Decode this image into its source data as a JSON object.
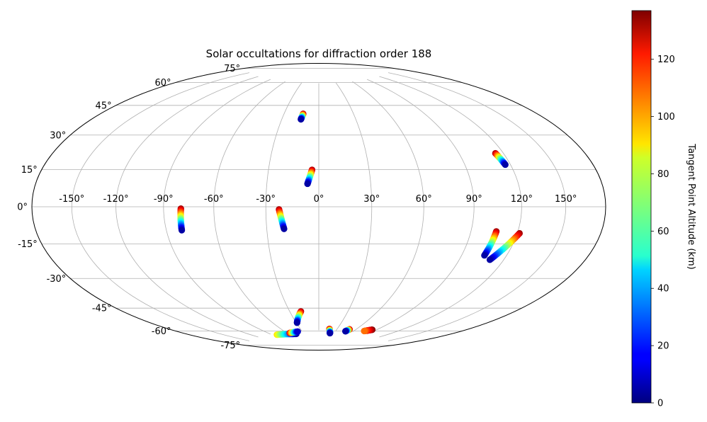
{
  "chart_data": {
    "type": "scatter",
    "projection": "hammer-aitoff",
    "title": "Solar occultations for diffraction order 188",
    "xlabel": "",
    "ylabel": "",
    "grid": true,
    "lon_ticks": [
      -150,
      -120,
      -90,
      -60,
      -30,
      0,
      30,
      60,
      90,
      120,
      150
    ],
    "lon_tick_labels": [
      "-150°",
      "-120°",
      "-90°",
      "-60°",
      "-30°",
      "0°",
      "30°",
      "60°",
      "90°",
      "120°",
      "150°"
    ],
    "lat_ticks": [
      75,
      60,
      45,
      30,
      15,
      0,
      -15,
      -30,
      -45,
      -60,
      -75
    ],
    "lat_tick_labels": [
      "75°",
      "60°",
      "45°",
      "30°",
      "15°",
      "0°",
      "-15°",
      "-30°",
      "-45°",
      "-60°",
      "-75°"
    ],
    "colorbar": {
      "label": "Tangent Point Altitude (km)",
      "min": 0,
      "max": 137,
      "ticks": [
        0,
        20,
        40,
        60,
        80,
        100,
        120
      ],
      "tick_labels": [
        "0",
        "20",
        "40",
        "60",
        "80",
        "100",
        "120"
      ],
      "colormap": "jet"
    },
    "tracks": [
      {
        "lon_start": -14.5,
        "lat_start": 51.0,
        "alt_start": 5,
        "lon_end": -13.5,
        "lat_end": 54.5,
        "alt_end": 132
      },
      {
        "lon_start": -6.5,
        "lat_start": 13.0,
        "alt_start": 5,
        "lon_end": -4.0,
        "lat_end": 21.0,
        "alt_end": 132
      },
      {
        "lon_start": 116.5,
        "lat_start": 21.0,
        "alt_start": 5,
        "lon_end": 114.5,
        "lat_end": 27.0,
        "alt_end": 132
      },
      {
        "lon_start": -80.5,
        "lat_start": -12.5,
        "alt_start": 5,
        "lon_end": -79.5,
        "lat_end": -1.0,
        "alt_end": 132
      },
      {
        "lon_start": -20.0,
        "lat_start": -12.5,
        "alt_start": 5,
        "lon_end": -22.5,
        "lat_end": -1.5,
        "alt_end": 132
      },
      {
        "lon_start": 105.0,
        "lat_start": -25.0,
        "alt_start": 5,
        "lon_end": 106.0,
        "lat_end": -12.5,
        "alt_end": 132
      },
      {
        "lon_start": 110.5,
        "lat_start": -27.0,
        "alt_start": 5,
        "lon_end": 121.5,
        "lat_end": -13.0,
        "alt_end": 132
      },
      {
        "lon_start": -29.0,
        "lat_start": -69.5,
        "alt_start": 5,
        "lon_end": -18.5,
        "lat_end": -62.0,
        "alt_end": 132
      },
      {
        "lon_start": -45.0,
        "lat_start": -77.0,
        "alt_start": 5,
        "lon_end": -82.0,
        "lat_end": -76.0,
        "alt_end": 90
      },
      {
        "lon_start": -38.0,
        "lat_start": -75.5,
        "alt_start": 10,
        "lon_end": -55.0,
        "lat_end": -76.0,
        "alt_end": 125
      },
      {
        "lon_start": 22.0,
        "lat_start": -77.0,
        "alt_start": 5,
        "lon_end": 17.5,
        "lat_end": -74.0,
        "alt_end": 132
      },
      {
        "lon_start": 47.0,
        "lat_start": -75.0,
        "alt_start": 5,
        "lon_end": 50.0,
        "lat_end": -73.5,
        "alt_end": 132
      },
      {
        "lon_start": 76.0,
        "lat_start": -73.5,
        "alt_start": 105,
        "lon_end": 84.0,
        "lat_end": -72.0,
        "alt_end": 137
      }
    ]
  }
}
